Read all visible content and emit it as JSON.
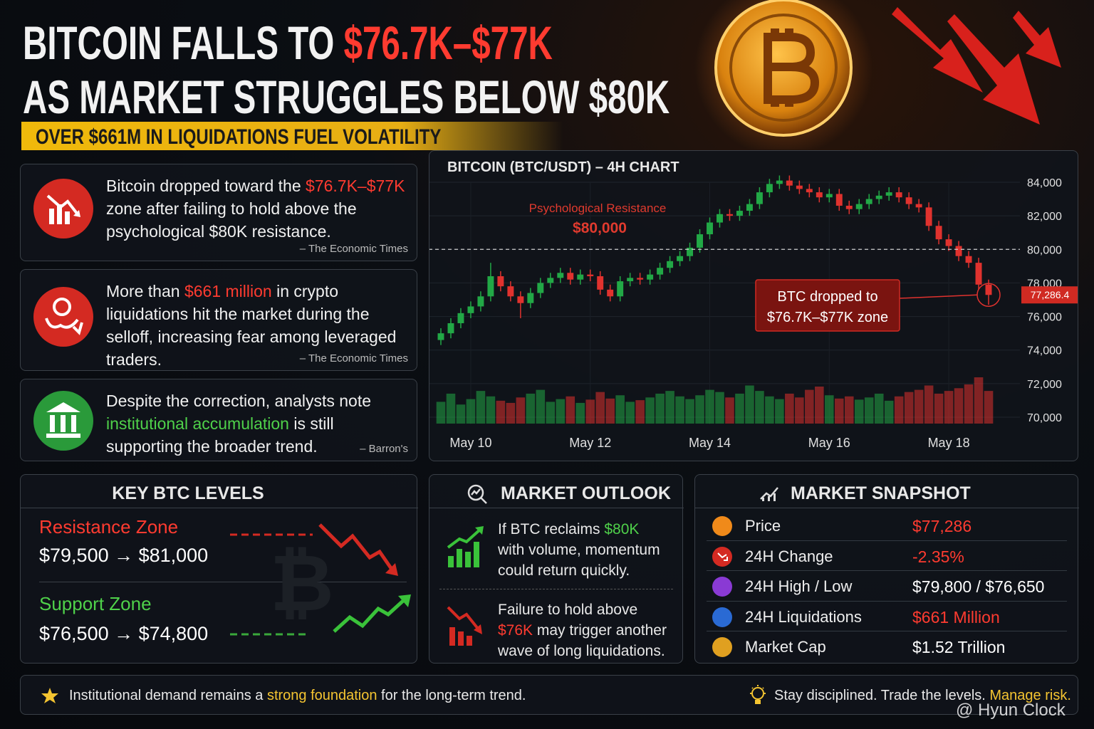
{
  "header": {
    "title_line1": [
      "BITCOIN FALLS TO ",
      "$76.7K–$77K"
    ],
    "title_line2": "AS MARKET STRUGGLES BELOW $80K",
    "subtitle": "OVER $661M IN LIQUIDATIONS FUEL VOLATILITY"
  },
  "news": [
    {
      "parts": [
        "Bitcoin dropped toward the ",
        "$76.7K–$77K",
        " zone after failing to hold above the psychological $80K resistance."
      ],
      "source": "– The Economic Times"
    },
    {
      "parts": [
        "More than ",
        "$661 million",
        " in crypto liquidations hit the market during the selloff, increasing fear among leveraged traders."
      ],
      "source": "– The Economic Times"
    },
    {
      "parts": [
        "Despite the correction, analysts note ",
        "institutional accumulation",
        " is still supporting the broader trend."
      ],
      "source": "– Barron's"
    }
  ],
  "chart_data": {
    "type": "candlestick",
    "title": "BITCOIN (BTC/USDT) – 4H CHART",
    "open": [
      74600,
      75000,
      75600,
      76200,
      76600,
      77200,
      78400,
      77800,
      77200,
      76800,
      77400,
      78000,
      78300,
      78600,
      78200,
      78500,
      78400,
      77600,
      77200,
      78100,
      78300,
      78200,
      78500,
      78900,
      79300,
      79600,
      80100,
      80900,
      81600,
      82100,
      82000,
      82300,
      82700,
      83400,
      83900,
      84100,
      83800,
      83600,
      83400,
      83100,
      83300,
      82600,
      82400,
      82700,
      83000,
      83200,
      83400,
      83100,
      82700,
      82500,
      81400,
      80600,
      80200,
      79600,
      79200,
      77900
    ],
    "high": [
      75300,
      75900,
      76500,
      76900,
      77500,
      79200,
      78700,
      78100,
      77500,
      77700,
      78300,
      78600,
      78900,
      78900,
      78800,
      78800,
      78700,
      77900,
      78400,
      78600,
      78600,
      78800,
      79200,
      79600,
      79900,
      80400,
      81200,
      81900,
      82400,
      82400,
      82600,
      83000,
      83700,
      84200,
      84400,
      84400,
      84100,
      83900,
      83700,
      83600,
      83600,
      82900,
      83000,
      83300,
      83500,
      83700,
      83700,
      83400,
      83000,
      82800,
      81700,
      80900,
      80500,
      79900,
      79500,
      78200
    ],
    "low": [
      74300,
      74700,
      75300,
      75900,
      76300,
      76900,
      77500,
      76900,
      75900,
      76500,
      77100,
      77700,
      78000,
      77900,
      77900,
      78100,
      77300,
      76900,
      76900,
      77800,
      77900,
      77900,
      78200,
      78600,
      79000,
      79300,
      79800,
      80600,
      81300,
      81700,
      81700,
      82000,
      82400,
      83100,
      83600,
      83500,
      83300,
      83100,
      82800,
      82800,
      82300,
      82100,
      82100,
      82400,
      82700,
      82900,
      82800,
      82400,
      82200,
      81100,
      80300,
      79900,
      79300,
      78900,
      77600,
      76700
    ],
    "close": [
      75000,
      75600,
      76200,
      76600,
      77200,
      78400,
      77800,
      77200,
      76800,
      77400,
      78000,
      78300,
      78600,
      78200,
      78500,
      78400,
      77600,
      77200,
      78100,
      78300,
      78200,
      78500,
      78900,
      79300,
      79600,
      80100,
      80900,
      81600,
      82100,
      82000,
      82300,
      82700,
      83400,
      83900,
      84100,
      83800,
      83600,
      83400,
      83100,
      83300,
      82600,
      82400,
      82700,
      83000,
      83200,
      83400,
      83100,
      82700,
      82500,
      81400,
      80600,
      80200,
      79600,
      79200,
      77900,
      77286.4
    ],
    "volume": [
      40,
      55,
      35,
      45,
      60,
      50,
      42,
      38,
      48,
      55,
      62,
      40,
      45,
      50,
      38,
      44,
      58,
      46,
      52,
      40,
      43,
      48,
      55,
      60,
      50,
      45,
      52,
      62,
      58,
      48,
      55,
      70,
      60,
      50,
      45,
      55,
      48,
      62,
      68,
      52,
      46,
      50,
      44,
      48,
      55,
      42,
      50,
      58,
      62,
      70,
      55,
      60,
      65,
      72,
      85,
      60
    ],
    "up_color": "#22a846",
    "down_color": "#e0322e",
    "xlim": [
      -0.5,
      55.5
    ],
    "xticks": [
      {
        "value": 3,
        "label": "May 10"
      },
      {
        "value": 15,
        "label": "May 12"
      },
      {
        "value": 27,
        "label": "May 14"
      },
      {
        "value": 39,
        "label": "May 16"
      },
      {
        "value": 51,
        "label": "May 18"
      }
    ],
    "ylim": [
      69000,
      85000
    ],
    "yticks": [
      {
        "value": 70000,
        "label": "70,000"
      },
      {
        "value": 72000,
        "label": "72,000"
      },
      {
        "value": 74000,
        "label": "74,000"
      },
      {
        "value": 76000,
        "label": "76,000"
      },
      {
        "value": 78000,
        "label": "78,000"
      },
      {
        "value": 80000,
        "label": "80,000"
      },
      {
        "value": 82000,
        "label": "82,000"
      },
      {
        "value": 84000,
        "label": "84,000"
      }
    ],
    "grid": true,
    "resistance_line": 80000,
    "last_price": {
      "value": 77286.4,
      "label": "77,286.4"
    },
    "annotations": {
      "resistance_label": "Psychological Resistance",
      "resistance_value": "$80,000",
      "callout": [
        "BTC dropped to",
        "$76.7K–$77K zone"
      ]
    }
  },
  "key_levels": {
    "title": "KEY BTC LEVELS",
    "resistance": {
      "label": "Resistance Zone",
      "range": "$79,500 → $81,000"
    },
    "support": {
      "label": "Support Zone",
      "range": "$76,500 → $74,800"
    }
  },
  "outlook": {
    "title": "MARKET OUTLOOK",
    "items": [
      {
        "parts": [
          "If BTC reclaims ",
          "$80K",
          " with volume, momentum could return quickly."
        ]
      },
      {
        "parts": [
          "Failure to hold above ",
          "$76K",
          " may trigger another wave of long liquidations."
        ]
      }
    ]
  },
  "snapshot": {
    "title": "MARKET SNAPSHOT",
    "rows": [
      [
        "Price",
        "$77,286"
      ],
      [
        "24H Change",
        "-2.35%"
      ],
      [
        "24H High / Low",
        "$79,800 / $76,650"
      ],
      [
        "24H Liquidations",
        "$661 Million"
      ],
      [
        "Market Cap",
        "$1.52 Trillion"
      ]
    ]
  },
  "footer": {
    "left": [
      "Institutional demand remains a ",
      "strong foundation",
      " for the long-term trend."
    ],
    "right": [
      "Stay disciplined. Trade the levels. ",
      "Manage risk."
    ]
  },
  "watermark": "@ Hyun Clock"
}
